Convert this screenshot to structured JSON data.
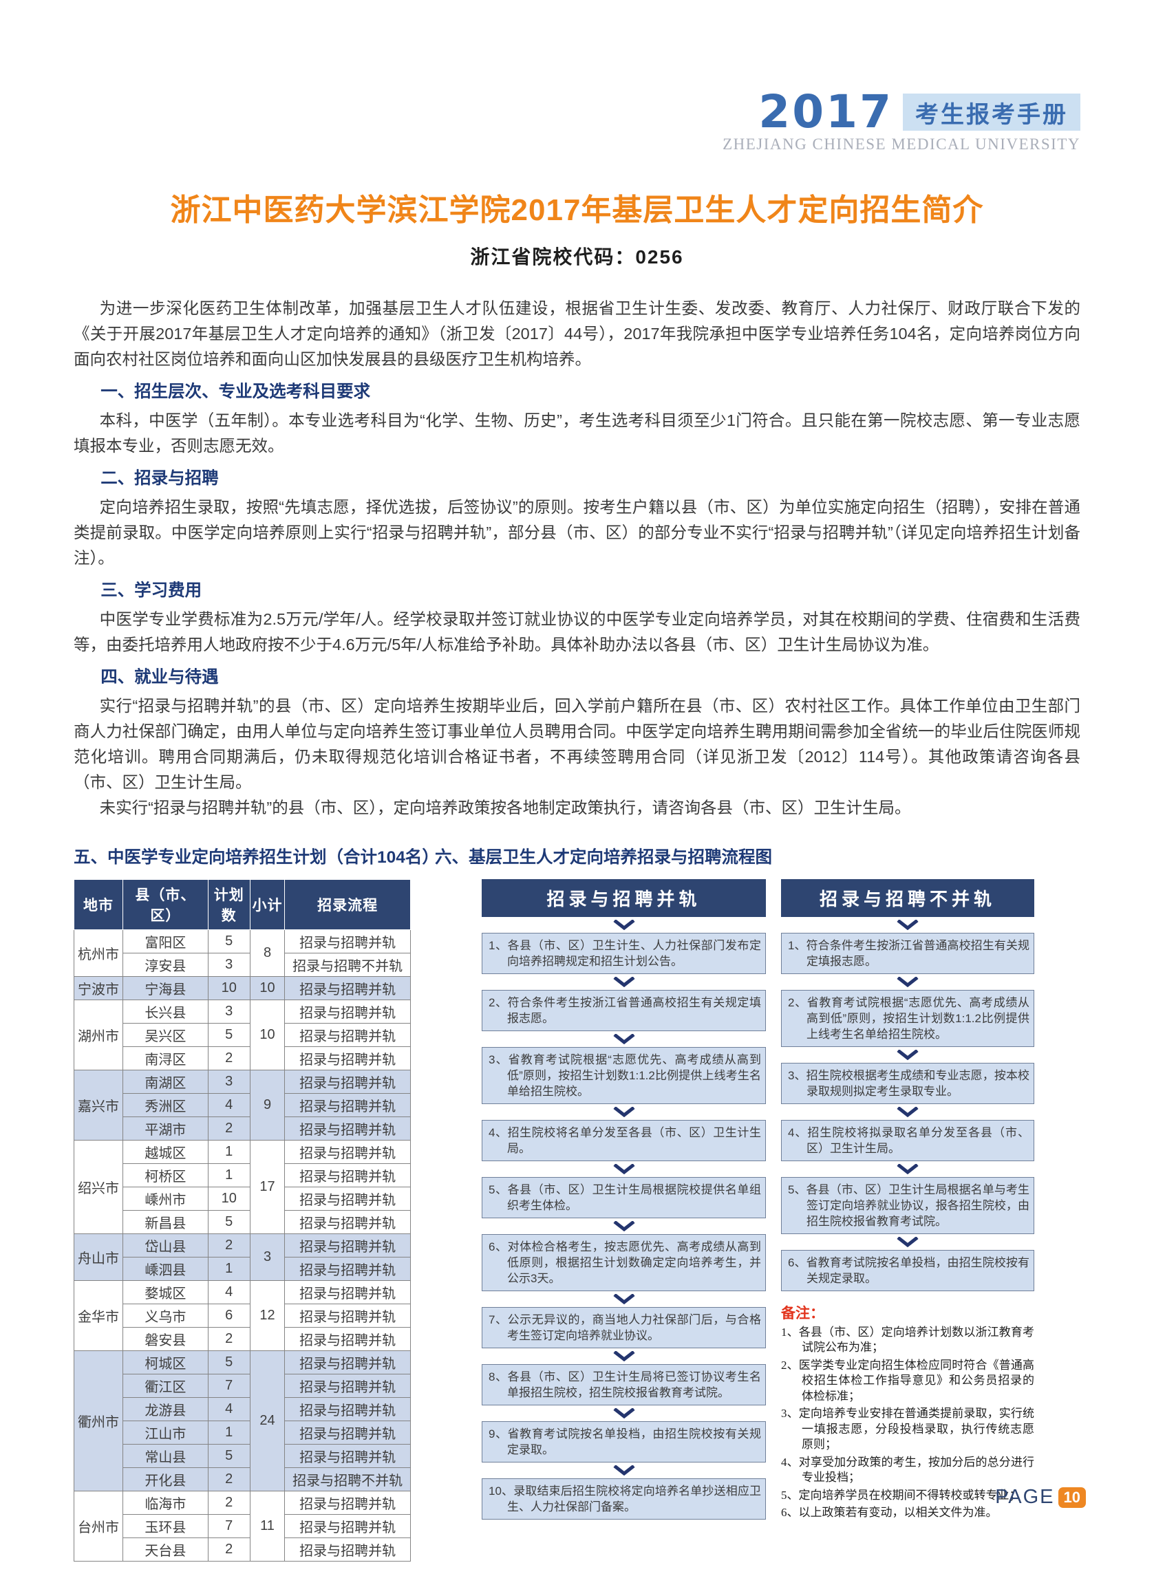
{
  "header": {
    "year": "2017",
    "handbook": "考生报考手册",
    "university_en": "ZHEJIANG CHINESE MEDICAL UNIVERSITY"
  },
  "title": "浙江中医药大学滨江学院2017年基层卫生人才定向招生简介",
  "subtitle": "浙江省院校代码：0256",
  "intro": "为进一步深化医药卫生体制改革，加强基层卫生人才队伍建设，根据省卫生计生委、发改委、教育厅、人力社保厅、财政厅联合下发的《关于开展2017年基层卫生人才定向培养的通知》（浙卫发〔2017〕44号），2017年我院承担中医学专业培养任务104名，定向培养岗位方向面向农村社区岗位培养和面向山区加快发展县的县级医疗卫生机构培养。",
  "sections": [
    {
      "heading": "一、招生层次、专业及选考科目要求",
      "paragraphs": [
        "本科，中医学（五年制）。本专业选考科目为“化学、生物、历史”，考生选考科目须至少1门符合。且只能在第一院校志愿、第一专业志愿填报本专业，否则志愿无效。"
      ]
    },
    {
      "heading": "二、招录与招聘",
      "paragraphs": [
        "定向培养招生录取，按照“先填志愿，择优选拔，后签协议”的原则。按考生户籍以县（市、区）为单位实施定向招生（招聘），安排在普通类提前录取。中医学定向培养原则上实行“招录与招聘并轨”，部分县（市、区）的部分专业不实行“招录与招聘并轨”（详见定向培养招生计划备注）。"
      ]
    },
    {
      "heading": "三、学习费用",
      "paragraphs": [
        "中医学专业学费标准为2.5万元/学年/人。经学校录取并签订就业协议的中医学专业定向培养学员，对其在校期间的学费、住宿费和生活费等，由委托培养用人地政府按不少于4.6万元/5年/人标准给予补助。具体补助办法以各县（市、区）卫生计生局协议为准。"
      ]
    },
    {
      "heading": "四、就业与待遇",
      "paragraphs": [
        "实行“招录与招聘并轨”的县（市、区）定向培养生按期毕业后，回入学前户籍所在县（市、区）农村社区工作。具体工作单位由卫生部门商人力社保部门确定，由用人单位与定向培养生签订事业单位人员聘用合同。中医学定向培养生聘用期间需参加全省统一的毕业后住院医师规范化培训。聘用合同期满后，仍未取得规范化培训合格证书者，不再续签聘用合同（详见浙卫发〔2012〕114号）。其他政策请咨询各县（市、区）卫生计生局。",
        "未实行“招录与招聘并轨”的县（市、区），定向培养政策按各地制定政策执行，请咨询各县（市、区）卫生计生局。"
      ]
    }
  ],
  "plan_section_heading": "五、中医学专业定向培养招生计划（合计104名）",
  "flow_section_heading": "六、基层卫生人才定向培养招录与招聘流程图",
  "table": {
    "headers": [
      "地市",
      "县（市、区）",
      "计划数",
      "小计",
      "招录流程"
    ],
    "groups": [
      {
        "city": "杭州市",
        "subtotal": "8",
        "shade": false,
        "rows": [
          {
            "county": "富阳区",
            "count": "5",
            "process": "招录与招聘并轨"
          },
          {
            "county": "淳安县",
            "count": "3",
            "process": "招录与招聘不并轨"
          }
        ]
      },
      {
        "city": "宁波市",
        "subtotal": "10",
        "shade": true,
        "rows": [
          {
            "county": "宁海县",
            "count": "10",
            "process": "招录与招聘并轨"
          }
        ]
      },
      {
        "city": "湖州市",
        "subtotal": "10",
        "shade": false,
        "rows": [
          {
            "county": "长兴县",
            "count": "3",
            "process": "招录与招聘并轨"
          },
          {
            "county": "吴兴区",
            "count": "5",
            "process": "招录与招聘并轨"
          },
          {
            "county": "南浔区",
            "count": "2",
            "process": "招录与招聘并轨"
          }
        ]
      },
      {
        "city": "嘉兴市",
        "subtotal": "9",
        "shade": true,
        "rows": [
          {
            "county": "南湖区",
            "count": "3",
            "process": "招录与招聘并轨"
          },
          {
            "county": "秀洲区",
            "count": "4",
            "process": "招录与招聘并轨"
          },
          {
            "county": "平湖市",
            "count": "2",
            "process": "招录与招聘并轨"
          }
        ]
      },
      {
        "city": "绍兴市",
        "subtotal": "17",
        "shade": false,
        "rows": [
          {
            "county": "越城区",
            "count": "1",
            "process": "招录与招聘并轨"
          },
          {
            "county": "柯桥区",
            "count": "1",
            "process": "招录与招聘并轨"
          },
          {
            "county": "嵊州市",
            "count": "10",
            "process": "招录与招聘并轨"
          },
          {
            "county": "新昌县",
            "count": "5",
            "process": "招录与招聘并轨"
          }
        ]
      },
      {
        "city": "舟山市",
        "subtotal": "3",
        "shade": true,
        "rows": [
          {
            "county": "岱山县",
            "count": "2",
            "process": "招录与招聘并轨"
          },
          {
            "county": "嵊泗县",
            "count": "1",
            "process": "招录与招聘并轨"
          }
        ]
      },
      {
        "city": "金华市",
        "subtotal": "12",
        "shade": false,
        "rows": [
          {
            "county": "婺城区",
            "count": "4",
            "process": "招录与招聘并轨"
          },
          {
            "county": "义乌市",
            "count": "6",
            "process": "招录与招聘并轨"
          },
          {
            "county": "磐安县",
            "count": "2",
            "process": "招录与招聘并轨"
          }
        ]
      },
      {
        "city": "衢州市",
        "subtotal": "24",
        "shade": true,
        "rows": [
          {
            "county": "柯城区",
            "count": "5",
            "process": "招录与招聘并轨"
          },
          {
            "county": "衢江区",
            "count": "7",
            "process": "招录与招聘并轨"
          },
          {
            "county": "龙游县",
            "count": "4",
            "process": "招录与招聘并轨"
          },
          {
            "county": "江山市",
            "count": "1",
            "process": "招录与招聘并轨"
          },
          {
            "county": "常山县",
            "count": "5",
            "process": "招录与招聘并轨"
          },
          {
            "county": "开化县",
            "count": "2",
            "process": "招录与招聘不并轨"
          }
        ]
      },
      {
        "city": "台州市",
        "subtotal": "11",
        "shade": false,
        "rows": [
          {
            "county": "临海市",
            "count": "2",
            "process": "招录与招聘并轨"
          },
          {
            "county": "玉环县",
            "count": "7",
            "process": "招录与招聘并轨"
          },
          {
            "county": "天台县",
            "count": "2",
            "process": "招录与招聘并轨"
          }
        ]
      }
    ]
  },
  "flowchart": {
    "left": {
      "title": "招录与招聘并轨",
      "steps": [
        "1、各县（市、区）卫生计生、人力社保部门发布定向培养招聘规定和招生计划公告。",
        "2、符合条件考生按浙江省普通高校招生有关规定填报志愿。",
        "3、省教育考试院根据“志愿优先、高考成绩从高到低”原则，按招生计划数1:1.2比例提供上线考生名单给招生院校。",
        "4、招生院校将名单分发至各县（市、区）卫生计生局。",
        "5、各县（市、区）卫生计生局根据院校提供名单组织考生体检。",
        "6、对体检合格考生，按志愿优先、高考成绩从高到低原则，根据招生计划数确定定向培养考生，并公示3天。",
        "7、公示无异议的，商当地人力社保部门后，与合格考生签订定向培养就业协议。",
        "8、各县（市、区）卫生计生局将已签订协议考生名单报招生院校，招生院校报省教育考试院。",
        "9、省教育考试院按名单投档，由招生院校按有关规定录取。",
        "10、录取结束后招生院校将定向培养名单抄送相应卫生、人力社保部门备案。"
      ]
    },
    "right": {
      "title": "招录与招聘不并轨",
      "steps": [
        "1、符合条件考生按浙江省普通高校招生有关规定填报志愿。",
        "2、省教育考试院根据“志愿优先、高考成绩从高到低”原则，按招生计划数1:1.2比例提供上线考生名单给招生院校。",
        "3、招生院校根据考生成绩和专业志愿，按本校录取规则拟定考生录取专业。",
        "4、招生院校将拟录取名单分发至各县（市、区）卫生计生局。",
        "5、各县（市、区）卫生计生局根据名单与考生签订定向培养就业协议，报各招生院校，由招生院校报省教育考试院。",
        "6、省教育考试院按名单投档，由招生院校按有关规定录取。"
      ]
    }
  },
  "remarks": {
    "label": "备注：",
    "items": [
      "1、各县（市、区）定向培养计划数以浙江教育考试院公布为准；",
      "2、医学类专业定向招生体检应同时符合《普通高校招生体检工作指导意见》和公务员招录的体检标准；",
      "3、定向培养专业安排在普通类提前录取，实行统一填报志愿，分段投档录取，执行传统志愿原则；",
      "4、对享受加分政策的考生，按加分后的总分进行专业投档；",
      "5、定向培养学员在校期间不得转校或转专业；",
      "6、以上政策若有变动，以相关文件为准。"
    ]
  },
  "footer": {
    "page_label": "PAGE",
    "page_number": "10"
  },
  "colors": {
    "brand_blue": "#3a6cb0",
    "banner_bg": "#cce0f2",
    "title_orange": "#f08519",
    "heading_navy": "#1d3976",
    "table_header_navy": "#2e4571",
    "shaded_row_blue": "#ccd7ea",
    "flow_box_bg": "#d0ddef",
    "remark_red": "#e2341d",
    "page_number_orange": "#ee8722"
  }
}
